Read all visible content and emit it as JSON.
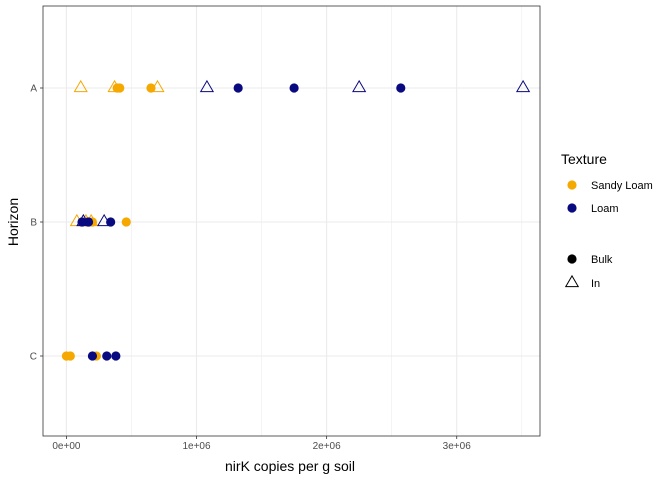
{
  "chart_data": {
    "type": "scatter",
    "xlabel": "nirK copies per g soil",
    "ylabel": "Horizon",
    "xlim": [
      -180000,
      3640000
    ],
    "x_ticks": [
      {
        "value": 0,
        "label": "0e+00"
      },
      {
        "value": 1000000,
        "label": "1e+06"
      },
      {
        "value": 2000000,
        "label": "2e+06"
      },
      {
        "value": 3000000,
        "label": "3e+06"
      }
    ],
    "categories": [
      "C",
      "B",
      "A"
    ],
    "grid": true,
    "legend_placement": "right",
    "legend": {
      "color_title": "Texture",
      "color_entries": [
        {
          "label": "Sandy Loam",
          "color": "#F5A800"
        },
        {
          "label": "Loam",
          "color": "#0A0A80"
        }
      ],
      "shape_entries": [
        {
          "label": "Bulk",
          "shape": "circle"
        },
        {
          "label": "In",
          "shape": "triangle"
        }
      ]
    },
    "series": [
      {
        "texture": "Sandy Loam",
        "type": "Bulk",
        "points": [
          {
            "x": 390000,
            "y": "A"
          },
          {
            "x": 410000,
            "y": "A"
          },
          {
            "x": 650000,
            "y": "A"
          },
          {
            "x": 160000,
            "y": "B"
          },
          {
            "x": 200000,
            "y": "B"
          },
          {
            "x": 460000,
            "y": "B"
          },
          {
            "x": 0,
            "y": "C"
          },
          {
            "x": 30000,
            "y": "C"
          },
          {
            "x": 230000,
            "y": "C"
          }
        ]
      },
      {
        "texture": "Sandy Loam",
        "type": "In",
        "points": [
          {
            "x": 110000,
            "y": "A"
          },
          {
            "x": 370000,
            "y": "A"
          },
          {
            "x": 700000,
            "y": "A"
          },
          {
            "x": 80000,
            "y": "B"
          },
          {
            "x": 150000,
            "y": "B"
          },
          {
            "x": 190000,
            "y": "B"
          }
        ]
      },
      {
        "texture": "Loam",
        "type": "Bulk",
        "points": [
          {
            "x": 1320000,
            "y": "A"
          },
          {
            "x": 1750000,
            "y": "A"
          },
          {
            "x": 2570000,
            "y": "A"
          },
          {
            "x": 120000,
            "y": "B"
          },
          {
            "x": 170000,
            "y": "B"
          },
          {
            "x": 340000,
            "y": "B"
          },
          {
            "x": 200000,
            "y": "C"
          },
          {
            "x": 310000,
            "y": "C"
          },
          {
            "x": 380000,
            "y": "C"
          }
        ]
      },
      {
        "texture": "Loam",
        "type": "In",
        "points": [
          {
            "x": 1080000,
            "y": "A"
          },
          {
            "x": 2250000,
            "y": "A"
          },
          {
            "x": 3510000,
            "y": "A"
          },
          {
            "x": 130000,
            "y": "B"
          },
          {
            "x": 290000,
            "y": "B"
          }
        ]
      }
    ]
  }
}
